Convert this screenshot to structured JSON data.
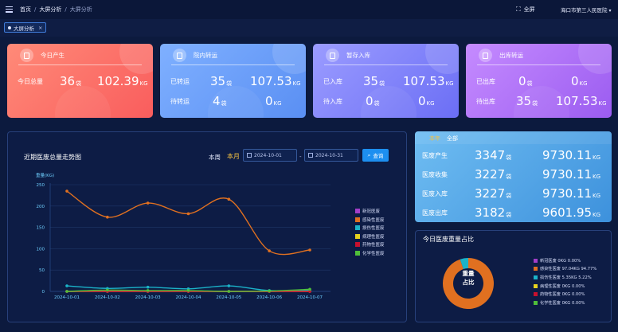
{
  "breadcrumb": {
    "home": "首页",
    "level1": "大屏分析",
    "current": "大屏分析"
  },
  "header": {
    "fullscreen_label": "全屏",
    "hospital": "海口市第三人民医院"
  },
  "tab": {
    "label": "大屏分析"
  },
  "cards": [
    {
      "title": "今日产生",
      "rows": [
        {
          "label": "今日总量",
          "count": "36",
          "count_unit": "袋",
          "weight": "102.39",
          "weight_unit": "KG"
        }
      ]
    },
    {
      "title": "院内转运",
      "rows": [
        {
          "label": "已转运",
          "count": "35",
          "count_unit": "袋",
          "weight": "107.53",
          "weight_unit": "KG"
        },
        {
          "label": "待转运",
          "count": "4",
          "count_unit": "袋",
          "weight": "0",
          "weight_unit": "KG"
        }
      ]
    },
    {
      "title": "暂存入库",
      "rows": [
        {
          "label": "已入库",
          "count": "35",
          "count_unit": "袋",
          "weight": "107.53",
          "weight_unit": "KG"
        },
        {
          "label": "待入库",
          "count": "0",
          "count_unit": "袋",
          "weight": "0",
          "weight_unit": "KG"
        }
      ]
    },
    {
      "title": "出库转运",
      "rows": [
        {
          "label": "已出库",
          "count": "0",
          "count_unit": "袋",
          "weight": "0",
          "weight_unit": "KG"
        },
        {
          "label": "待出库",
          "count": "35",
          "count_unit": "袋",
          "weight": "107.53",
          "weight_unit": "KG"
        }
      ]
    }
  ],
  "trend": {
    "title": "近期医废总量走势图",
    "tab_week": "本周",
    "tab_month": "本月",
    "date_start": "2024-10-01",
    "date_end": "2024-10-31",
    "date_sep": "-",
    "query_label": "查询"
  },
  "chart_data": {
    "type": "line",
    "ylabel": "重量(KG)",
    "ylim": [
      0,
      250
    ],
    "yticks": [
      "0",
      "50",
      "100",
      "150",
      "200",
      "250"
    ],
    "categories": [
      "2024-10-01",
      "2024-10-02",
      "2024-10-03",
      "2024-10-04",
      "2024-10-05",
      "2024-10-06",
      "2024-10-07"
    ],
    "legend_position": "right",
    "series": [
      {
        "name": "新冠医废",
        "color": "#a23ec8",
        "values": [
          0,
          0,
          0,
          0,
          0,
          0,
          0
        ]
      },
      {
        "name": "感染性医废",
        "color": "#e07020",
        "values": [
          235,
          174,
          207,
          182,
          216,
          95,
          97
        ]
      },
      {
        "name": "损伤性医废",
        "color": "#1bb3c9",
        "values": [
          13,
          7,
          10,
          6,
          13,
          2,
          3
        ]
      },
      {
        "name": "病理性医废",
        "color": "#e6d21e",
        "values": [
          0,
          0,
          0,
          0,
          0,
          0,
          0
        ]
      },
      {
        "name": "药物性医废",
        "color": "#c8102e",
        "values": [
          0,
          0,
          0,
          0,
          0,
          0,
          0
        ]
      },
      {
        "name": "化学性医废",
        "color": "#4fbf3a",
        "values": [
          0,
          3,
          2,
          2,
          0,
          1,
          5
        ]
      }
    ]
  },
  "summary": {
    "tab_today": "本年",
    "tab_all": "全部",
    "rows": [
      {
        "label": "医废产生",
        "count": "3347",
        "count_unit": "袋",
        "weight": "9730.11",
        "weight_unit": "KG"
      },
      {
        "label": "医废收集",
        "count": "3227",
        "count_unit": "袋",
        "weight": "9730.11",
        "weight_unit": "KG"
      },
      {
        "label": "医废入库",
        "count": "3227",
        "count_unit": "袋",
        "weight": "9730.11",
        "weight_unit": "KG"
      },
      {
        "label": "医废出库",
        "count": "3182",
        "count_unit": "袋",
        "weight": "9601.95",
        "weight_unit": "KG"
      }
    ]
  },
  "donut": {
    "title": "今日医废重量占比",
    "center_line1": "重量",
    "center_line2": "占比",
    "items": [
      {
        "label": "新冠医废",
        "weight": "0KG",
        "pct": "0.00%",
        "value": 0,
        "color": "#a23ec8"
      },
      {
        "label": "感染性医废",
        "weight": "97.04KG",
        "pct": "94.77%",
        "value": 97.04,
        "color": "#e07020"
      },
      {
        "label": "损伤性医废",
        "weight": "5.35KG",
        "pct": "5.22%",
        "value": 5.35,
        "color": "#1bb3c9"
      },
      {
        "label": "病理性医废",
        "weight": "0KG",
        "pct": "0.00%",
        "value": 0,
        "color": "#e6d21e"
      },
      {
        "label": "药物性医废",
        "weight": "0KG",
        "pct": "0.00%",
        "value": 0,
        "color": "#c8102e"
      },
      {
        "label": "化学性医废",
        "weight": "0KG",
        "pct": "0.00%",
        "value": 0,
        "color": "#4fbf3a"
      }
    ]
  }
}
